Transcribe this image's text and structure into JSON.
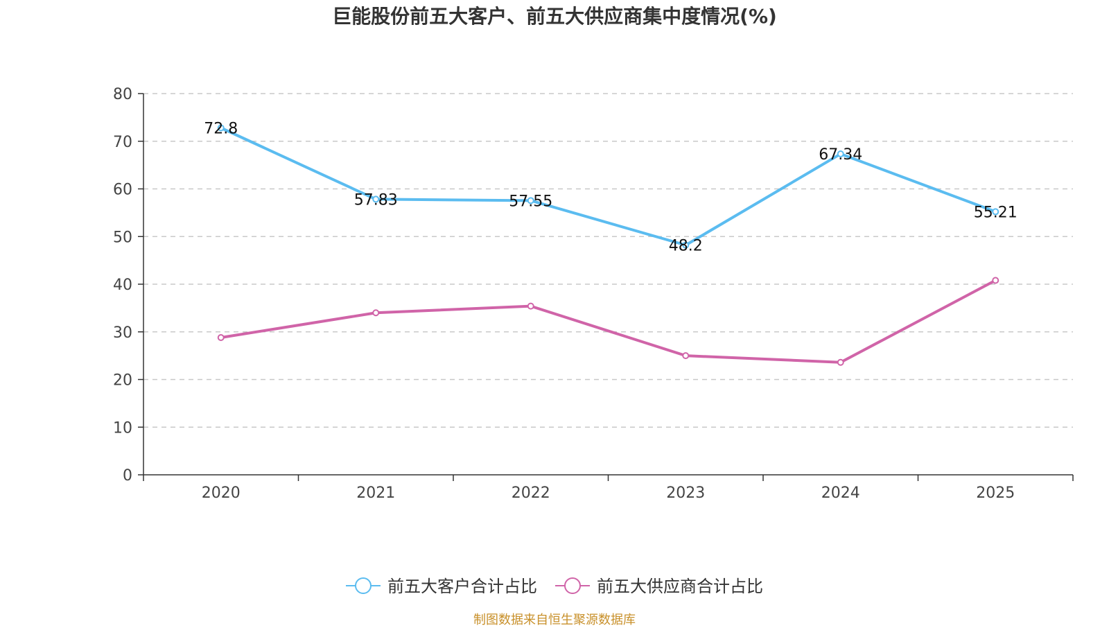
{
  "chart_data": {
    "type": "line",
    "title": "巨能股份前五大客户、前五大供应商集中度情况(%)",
    "categories": [
      "2020",
      "2021",
      "2022",
      "2023",
      "2024",
      "2025"
    ],
    "ylim": [
      0,
      80
    ],
    "yticks": [
      0,
      10,
      20,
      30,
      40,
      50,
      60,
      70,
      80
    ],
    "grid": true,
    "legend_position": "bottom",
    "series": [
      {
        "name": "前五大客户合计占比",
        "color": "#5bbcf0",
        "values": [
          72.8,
          57.83,
          57.55,
          48.2,
          67.34,
          55.21
        ],
        "labels": [
          "72.8",
          "57.83",
          "57.55",
          "48.2",
          "67.34",
          "55.21"
        ]
      },
      {
        "name": "前五大供应商合计占比",
        "color": "#d064a8",
        "values": [
          28.8,
          34.0,
          35.4,
          25.0,
          23.6,
          40.8
        ]
      }
    ],
    "source": "制图数据来自恒生聚源数据库"
  }
}
